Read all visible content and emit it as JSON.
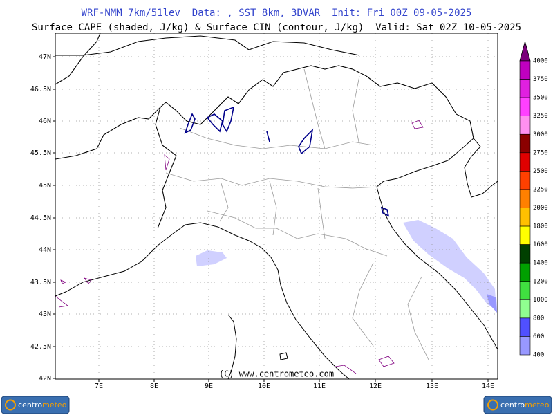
{
  "header": {
    "line1": "WRF-NMM 7km/51lev  Data: , SST 8km, 3DVAR  Init: Fri 00Z 09-05-2025",
    "line2": "Surface CAPE (shaded, J/kg) & Surface CIN (contour, J/kg)  Valid: Sat 02Z 10-05-2025"
  },
  "map": {
    "lat_labels": [
      "47N",
      "46.5N",
      "46N",
      "45.5N",
      "45N",
      "44.5N",
      "44N",
      "43.5N",
      "43N",
      "42.5N",
      "42N"
    ],
    "lon_labels": [
      "7E",
      "8E",
      "9E",
      "10E",
      "11E",
      "12E",
      "13E",
      "14E"
    ],
    "copyright": "(C) www.centrometeo.com"
  },
  "colorbar": {
    "labels": [
      "4000",
      "3750",
      "3500",
      "3250",
      "3000",
      "2750",
      "2500",
      "2250",
      "2000",
      "1800",
      "1600",
      "1400",
      "1200",
      "1000",
      "800",
      "600",
      "400"
    ],
    "top_color": "#7a007a",
    "colors": [
      "#c000c0",
      "#e020e0",
      "#ff40ff",
      "#ff90f0",
      "#8b0000",
      "#e00000",
      "#ff4000",
      "#ff8000",
      "#ffc000",
      "#ffff00",
      "#004000",
      "#00a000",
      "#40e040",
      "#90ff90",
      "#5050ff",
      "#9898ff",
      "#d0d0ff"
    ]
  },
  "logo": {
    "parts": [
      "centro",
      "meteo"
    ]
  }
}
